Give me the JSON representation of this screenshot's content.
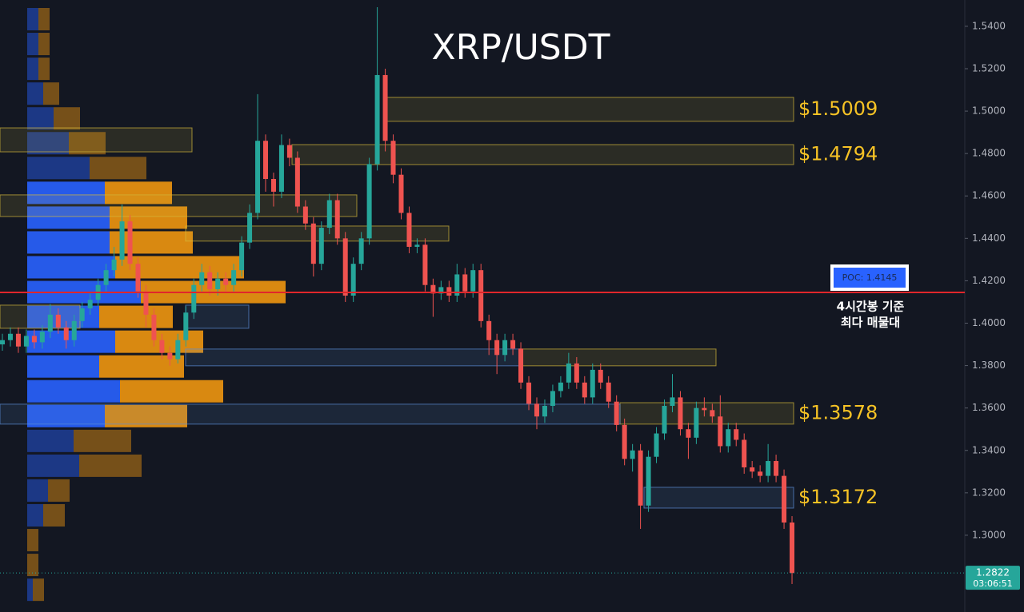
{
  "chart_data": {
    "type": "candlestick",
    "title": "XRP/USDT",
    "up_color": "#26a69a",
    "down_color": "#ef5350",
    "ylim": [
      1.2638,
      1.5524
    ],
    "yticks": [
      {
        "value": 1.3,
        "label": "1.3000"
      },
      {
        "value": 1.32,
        "label": "1.3200"
      },
      {
        "value": 1.34,
        "label": "1.3400"
      },
      {
        "value": 1.36,
        "label": "1.3600"
      },
      {
        "value": 1.38,
        "label": "1.3800"
      },
      {
        "value": 1.4,
        "label": "1.4000"
      },
      {
        "value": 1.42,
        "label": "1.4200"
      },
      {
        "value": 1.44,
        "label": "1.4400"
      },
      {
        "value": 1.46,
        "label": "1.4600"
      },
      {
        "value": 1.48,
        "label": "1.4800"
      },
      {
        "value": 1.5,
        "label": "1.5000"
      },
      {
        "value": 1.52,
        "label": "1.5200"
      },
      {
        "value": 1.54,
        "label": "1.5400"
      }
    ],
    "ohlc": [
      [
        1.39,
        1.395,
        1.387,
        1.392
      ],
      [
        1.392,
        1.398,
        1.389,
        1.395
      ],
      [
        1.395,
        1.398,
        1.386,
        1.389
      ],
      [
        1.389,
        1.397,
        1.386,
        1.394
      ],
      [
        1.394,
        1.397,
        1.388,
        1.391
      ],
      [
        1.391,
        1.399,
        1.388,
        1.396
      ],
      [
        1.396,
        1.409,
        1.393,
        1.404
      ],
      [
        1.404,
        1.407,
        1.395,
        1.398
      ],
      [
        1.398,
        1.401,
        1.388,
        1.392
      ],
      [
        1.392,
        1.404,
        1.389,
        1.401
      ],
      [
        1.401,
        1.41,
        1.398,
        1.407
      ],
      [
        1.407,
        1.414,
        1.404,
        1.411
      ],
      [
        1.411,
        1.421,
        1.408,
        1.418
      ],
      [
        1.418,
        1.428,
        1.415,
        1.425
      ],
      [
        1.425,
        1.436,
        1.422,
        1.43
      ],
      [
        1.43,
        1.456,
        1.427,
        1.448
      ],
      [
        1.448,
        1.451,
        1.425,
        1.428
      ],
      [
        1.428,
        1.431,
        1.412,
        1.415
      ],
      [
        1.415,
        1.418,
        1.398,
        1.404
      ],
      [
        1.404,
        1.407,
        1.389,
        1.392
      ],
      [
        1.392,
        1.395,
        1.383,
        1.386
      ],
      [
        1.386,
        1.389,
        1.38,
        1.383
      ],
      [
        1.383,
        1.395,
        1.381,
        1.392
      ],
      [
        1.392,
        1.408,
        1.389,
        1.405
      ],
      [
        1.405,
        1.421,
        1.402,
        1.418
      ],
      [
        1.418,
        1.428,
        1.415,
        1.424
      ],
      [
        1.424,
        1.427,
        1.413,
        1.416
      ],
      [
        1.416,
        1.424,
        1.413,
        1.421
      ],
      [
        1.421,
        1.424,
        1.415,
        1.418
      ],
      [
        1.418,
        1.428,
        1.415,
        1.425
      ],
      [
        1.425,
        1.441,
        1.422,
        1.438
      ],
      [
        1.438,
        1.456,
        1.435,
        1.452
      ],
      [
        1.452,
        1.508,
        1.449,
        1.486
      ],
      [
        1.486,
        1.489,
        1.462,
        1.468
      ],
      [
        1.468,
        1.471,
        1.455,
        1.462
      ],
      [
        1.462,
        1.489,
        1.459,
        1.484
      ],
      [
        1.484,
        1.487,
        1.474,
        1.478
      ],
      [
        1.478,
        1.481,
        1.452,
        1.455
      ],
      [
        1.455,
        1.458,
        1.444,
        1.447
      ],
      [
        1.447,
        1.45,
        1.422,
        1.428
      ],
      [
        1.428,
        1.448,
        1.425,
        1.445
      ],
      [
        1.445,
        1.461,
        1.442,
        1.458
      ],
      [
        1.458,
        1.461,
        1.437,
        1.44
      ],
      [
        1.44,
        1.443,
        1.41,
        1.413
      ],
      [
        1.413,
        1.431,
        1.41,
        1.428
      ],
      [
        1.428,
        1.443,
        1.425,
        1.44
      ],
      [
        1.44,
        1.478,
        1.437,
        1.475
      ],
      [
        1.475,
        1.549,
        1.472,
        1.517
      ],
      [
        1.517,
        1.52,
        1.481,
        1.486
      ],
      [
        1.486,
        1.489,
        1.466,
        1.47
      ],
      [
        1.47,
        1.473,
        1.449,
        1.452
      ],
      [
        1.452,
        1.455,
        1.433,
        1.436
      ],
      [
        1.436,
        1.44,
        1.433,
        1.437
      ],
      [
        1.437,
        1.44,
        1.415,
        1.418
      ],
      [
        1.418,
        1.421,
        1.403,
        1.414
      ],
      [
        1.414,
        1.42,
        1.411,
        1.417
      ],
      [
        1.417,
        1.42,
        1.41,
        1.413
      ],
      [
        1.413,
        1.428,
        1.41,
        1.423
      ],
      [
        1.423,
        1.426,
        1.412,
        1.415
      ],
      [
        1.415,
        1.428,
        1.412,
        1.425
      ],
      [
        1.425,
        1.428,
        1.398,
        1.401
      ],
      [
        1.401,
        1.404,
        1.385,
        1.392
      ],
      [
        1.392,
        1.395,
        1.376,
        1.385
      ],
      [
        1.385,
        1.395,
        1.382,
        1.392
      ],
      [
        1.392,
        1.395,
        1.385,
        1.388
      ],
      [
        1.388,
        1.391,
        1.369,
        1.372
      ],
      [
        1.372,
        1.375,
        1.359,
        1.362
      ],
      [
        1.362,
        1.365,
        1.35,
        1.356
      ],
      [
        1.356,
        1.364,
        1.353,
        1.361
      ],
      [
        1.361,
        1.371,
        1.358,
        1.368
      ],
      [
        1.368,
        1.375,
        1.365,
        1.372
      ],
      [
        1.372,
        1.386,
        1.369,
        1.381
      ],
      [
        1.381,
        1.384,
        1.369,
        1.372
      ],
      [
        1.372,
        1.375,
        1.362,
        1.365
      ],
      [
        1.365,
        1.381,
        1.362,
        1.378
      ],
      [
        1.378,
        1.381,
        1.369,
        1.372
      ],
      [
        1.372,
        1.375,
        1.36,
        1.363
      ],
      [
        1.363,
        1.366,
        1.349,
        1.352
      ],
      [
        1.352,
        1.355,
        1.333,
        1.336
      ],
      [
        1.336,
        1.343,
        1.33,
        1.34
      ],
      [
        1.34,
        1.343,
        1.303,
        1.314
      ],
      [
        1.314,
        1.34,
        1.311,
        1.337
      ],
      [
        1.337,
        1.351,
        1.334,
        1.348
      ],
      [
        1.348,
        1.364,
        1.345,
        1.361
      ],
      [
        1.361,
        1.376,
        1.358,
        1.365
      ],
      [
        1.365,
        1.368,
        1.347,
        1.35
      ],
      [
        1.35,
        1.353,
        1.336,
        1.346
      ],
      [
        1.346,
        1.363,
        1.343,
        1.36
      ],
      [
        1.36,
        1.365,
        1.356,
        1.359
      ],
      [
        1.359,
        1.362,
        1.353,
        1.356
      ],
      [
        1.356,
        1.366,
        1.339,
        1.342
      ],
      [
        1.342,
        1.353,
        1.339,
        1.35
      ],
      [
        1.35,
        1.353,
        1.342,
        1.345
      ],
      [
        1.345,
        1.348,
        1.329,
        1.332
      ],
      [
        1.332,
        1.335,
        1.327,
        1.33
      ],
      [
        1.33,
        1.333,
        1.325,
        1.328
      ],
      [
        1.328,
        1.343,
        1.325,
        1.335
      ],
      [
        1.335,
        1.338,
        1.325,
        1.328
      ],
      [
        1.328,
        1.331,
        1.303,
        1.306
      ],
      [
        1.306,
        1.309,
        1.277,
        1.2822
      ]
    ],
    "volume_profile": {
      "buy_color": "#2962ff",
      "sell_color": "#f0960f",
      "buy": [
        14,
        14,
        14,
        20,
        33,
        52,
        78,
        97,
        103,
        103,
        110,
        142,
        90,
        110,
        90,
        116,
        97,
        58,
        65,
        26,
        20,
        0,
        0,
        7
      ],
      "sell": [
        14,
        14,
        14,
        20,
        33,
        46,
        71,
        84,
        97,
        104,
        161,
        181,
        92,
        110,
        106,
        129,
        103,
        72,
        78,
        27,
        27,
        14,
        14,
        14
      ]
    },
    "zones": [
      {
        "low": 1.4952,
        "high": 1.5065,
        "color": "#d4b83a",
        "label": "$1.5009"
      },
      {
        "low": 1.4748,
        "high": 1.4842,
        "color": "#d4b83a",
        "label": "$1.4794"
      },
      {
        "low": 1.4503,
        "high": 1.4605,
        "color": "#d4b83a"
      },
      {
        "low": 1.4387,
        "high": 1.4458,
        "color": "#d4b83a"
      },
      {
        "low": 1.4808,
        "high": 1.4921,
        "color": "#d4b83a"
      },
      {
        "low": 1.3976,
        "high": 1.4085,
        "color": "#5b8fd9"
      },
      {
        "low": 1.3799,
        "high": 1.3878,
        "color": "#d4b83a"
      },
      {
        "low": 1.3799,
        "high": 1.3878,
        "color": "#5b8fd9"
      },
      {
        "low": 1.3524,
        "high": 1.3625,
        "color": "#d4b83a",
        "label": "$1.3578"
      },
      {
        "low": 1.3524,
        "high": 1.3618,
        "color": "#5b8fd9"
      },
      {
        "low": 1.3128,
        "high": 1.3226,
        "color": "#5b8fd9",
        "label": "$1.3172"
      },
      {
        "low": 1.3976,
        "high": 1.4085,
        "color": "#d4b83a"
      }
    ],
    "poc": {
      "value": 1.4145,
      "label": "POC: 1.4145",
      "color": "#e0262b",
      "note": [
        "4시간봉 기준",
        "최다 매물대"
      ]
    },
    "last_price": {
      "value": 1.2822,
      "countdown": "03:06:51",
      "color": "#26a69a"
    }
  }
}
